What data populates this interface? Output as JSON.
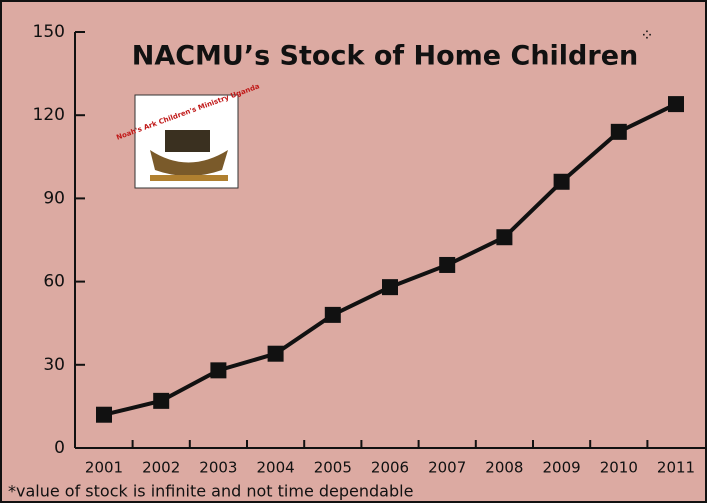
{
  "chart_data": {
    "type": "line",
    "title": "NACMU’s Stock of Home Children",
    "title_marker": "⁘",
    "footnote": "*value of stock is infinite and not time dependable",
    "logo_text": "Noah's Ark Children's Ministry Uganda",
    "categories": [
      "2001",
      "2002",
      "2003",
      "2004",
      "2005",
      "2006",
      "2007",
      "2008",
      "2009",
      "2010",
      "2011"
    ],
    "values": [
      12,
      17,
      28,
      34,
      48,
      58,
      66,
      76,
      96,
      114,
      124
    ],
    "color": "#111111",
    "ylim": [
      0,
      150
    ],
    "yticks": [
      0,
      30,
      60,
      90,
      120,
      150
    ]
  }
}
